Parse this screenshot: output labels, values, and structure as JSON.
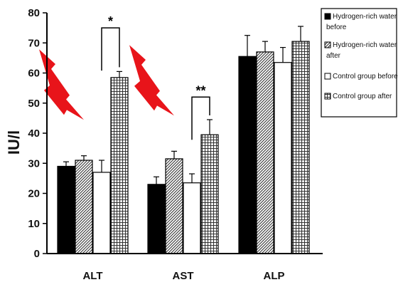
{
  "chart_data": {
    "type": "bar",
    "categories": [
      "ALT",
      "AST",
      "ALP"
    ],
    "ylabel": "IU/l",
    "ylim": [
      0,
      80
    ],
    "yticks": [
      0,
      10,
      20,
      30,
      40,
      50,
      60,
      70,
      80
    ],
    "grid": false,
    "legend_position": "top-right",
    "series": [
      {
        "name": "Hydrogen-rich water before",
        "values": [
          29,
          23,
          65.5
        ],
        "errors": [
          1.5,
          2.5,
          7
        ],
        "pattern": "solid",
        "color": "#000000"
      },
      {
        "name": "Hydrogen-rich water after",
        "values": [
          31,
          31.5,
          67
        ],
        "errors": [
          1.5,
          2.5,
          3.5
        ],
        "pattern": "diagonal",
        "color": "#555555"
      },
      {
        "name": "Control group before",
        "values": [
          27,
          23.5,
          63.5
        ],
        "errors": [
          4,
          3,
          5
        ],
        "pattern": "white",
        "color": "#ffffff"
      },
      {
        "name": "Control group after",
        "values": [
          58.5,
          39.5,
          70.5
        ],
        "errors": [
          2,
          5,
          5
        ],
        "pattern": "grid",
        "color": "#444444"
      }
    ],
    "significance": [
      {
        "category": "ALT",
        "label": "*",
        "from_series": 2,
        "to_series": 3,
        "y": 75
      },
      {
        "category": "AST",
        "label": "**",
        "from_series": 2,
        "to_series": 3,
        "y": 52
      }
    ],
    "annotations": [
      {
        "type": "lightning-bolt",
        "category": "ALT",
        "color": "#e8141a"
      },
      {
        "type": "lightning-bolt",
        "category": "AST",
        "color": "#e8141a"
      }
    ]
  }
}
